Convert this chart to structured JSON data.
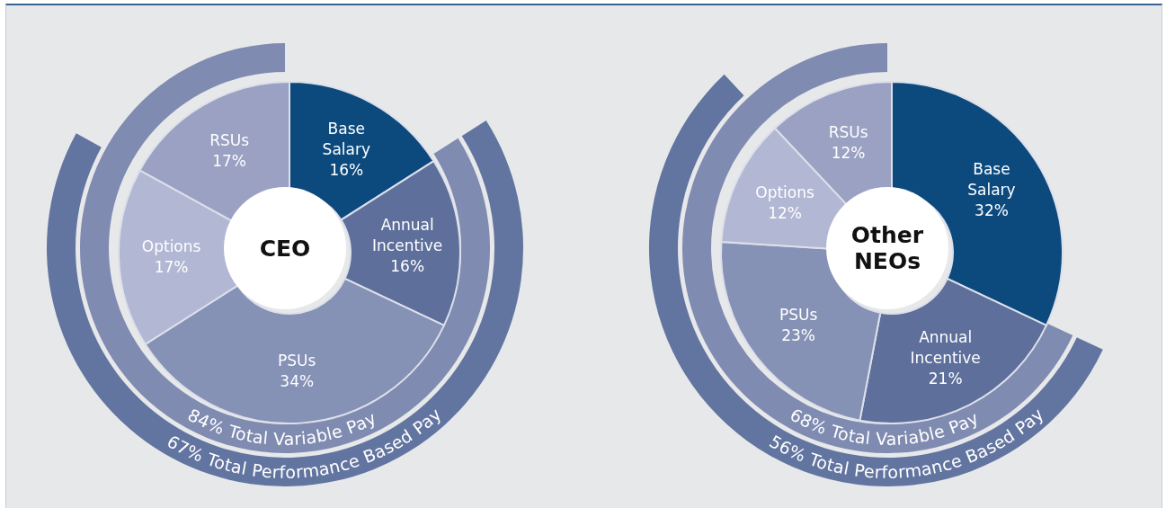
{
  "chart_data": [
    {
      "type": "donut",
      "title": "CEO",
      "categories": [
        "Base Salary",
        "Annual Incentive",
        "PSUs",
        "Options",
        "RSUs"
      ],
      "values": [
        16,
        16,
        34,
        17,
        17
      ],
      "value_labels": [
        "16%",
        "16%",
        "34%",
        "17%",
        "17%"
      ],
      "colors": [
        "#0c4a7e",
        "#5d6f9a",
        "#8591b5",
        "#b2b7d3",
        "#9aa1c2"
      ],
      "annotations": [
        "84% Total Variable Pay",
        "67% Total Performance Based Pay"
      ],
      "legend": false
    },
    {
      "type": "donut",
      "title": "Other NEOs",
      "categories": [
        "Base Salary",
        "Annual Incentive",
        "PSUs",
        "Options",
        "RSUs"
      ],
      "values": [
        32,
        21,
        23,
        12,
        12
      ],
      "value_labels": [
        "32%",
        "21%",
        "23%",
        "12%",
        "12%"
      ],
      "colors": [
        "#0c4a7e",
        "#5d6f9a",
        "#8591b5",
        "#b2b7d3",
        "#9aa1c2"
      ],
      "annotations": [
        "68% Total Variable Pay",
        "56% Total Performance Based Pay"
      ],
      "legend": false
    }
  ]
}
